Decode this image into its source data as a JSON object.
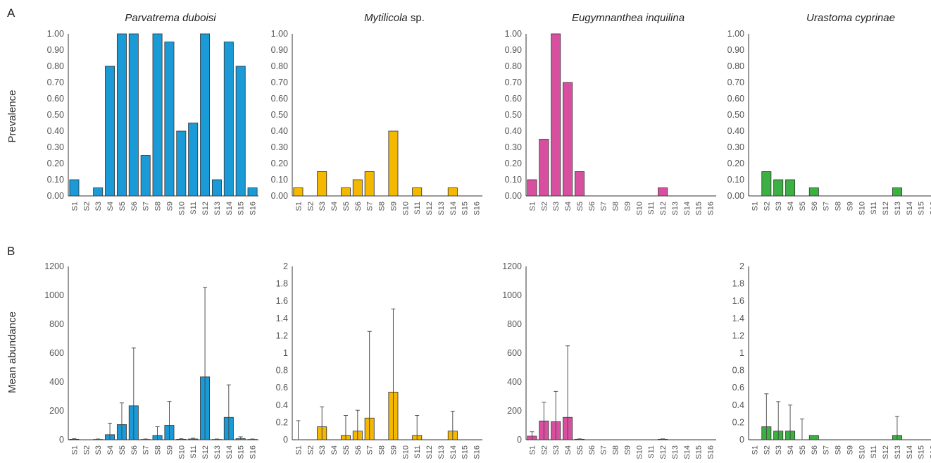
{
  "panel_labels": [
    "A",
    "B"
  ],
  "ylabels": {
    "prevalence": "Prevalence",
    "abundance": "Mean abundance"
  },
  "categories": [
    "S1",
    "S2",
    "S3",
    "S4",
    "S5",
    "S6",
    "S7",
    "S8",
    "S9",
    "S10",
    "S11",
    "S12",
    "S13",
    "S14",
    "S15",
    "S16"
  ],
  "chart_data": [
    {
      "type": "bar",
      "panel": "A",
      "title": "Parvatrema duboisi",
      "ylabel": "Prevalence",
      "color": "#1a9bd7",
      "ylim": [
        0,
        1
      ],
      "ystep": 0.1,
      "ydecimals": 2,
      "values": [
        0.1,
        0,
        0.05,
        0.8,
        1.0,
        1.0,
        0.25,
        1.0,
        0.95,
        0.4,
        0.45,
        1.0,
        0.1,
        0.95,
        0.8,
        0.05
      ]
    },
    {
      "type": "bar",
      "panel": "A",
      "title_italic": "Mytilicola",
      "title_plain": " sp.",
      "color": "#f5b800",
      "ylim": [
        0,
        1
      ],
      "ystep": 0.1,
      "ydecimals": 2,
      "values": [
        0.05,
        0,
        0.15,
        0,
        0.05,
        0.1,
        0.15,
        0,
        0.4,
        0,
        0.05,
        0,
        0,
        0.05,
        0,
        0
      ]
    },
    {
      "type": "bar",
      "panel": "A",
      "title": "Eugymnanthea inquilina",
      "color": "#d94fa0",
      "ylim": [
        0,
        1
      ],
      "ystep": 0.1,
      "ydecimals": 2,
      "values": [
        0.1,
        0.35,
        1.0,
        0.7,
        0.15,
        0,
        0,
        0,
        0,
        0,
        0,
        0.05,
        0,
        0,
        0,
        0
      ]
    },
    {
      "type": "bar",
      "panel": "A",
      "title": "Urastoma cyprinae",
      "color": "#3cb043",
      "ylim": [
        0,
        1
      ],
      "ystep": 0.1,
      "ydecimals": 2,
      "values": [
        0,
        0.15,
        0.1,
        0.1,
        0,
        0.05,
        0,
        0,
        0,
        0,
        0,
        0,
        0.05,
        0,
        0,
        0
      ]
    },
    {
      "type": "bar",
      "panel": "B",
      "ylabel": "Mean abundance",
      "color": "#1a9bd7",
      "ylim": [
        0,
        1200
      ],
      "ystep": 200,
      "ydecimals": 0,
      "values": [
        3,
        0,
        2,
        35,
        105,
        235,
        2,
        30,
        100,
        3,
        5,
        435,
        2,
        155,
        8,
        2
      ],
      "error": [
        4,
        0,
        3,
        80,
        150,
        400,
        3,
        60,
        165,
        4,
        6,
        620,
        3,
        225,
        12,
        3
      ]
    },
    {
      "type": "bar",
      "panel": "B",
      "color": "#f5b800",
      "ylim": [
        0,
        2
      ],
      "ystep": 0.2,
      "ydecimals": 1,
      "values": [
        0,
        0,
        0.15,
        0,
        0.05,
        0.1,
        0.25,
        0,
        0.55,
        0,
        0.05,
        0,
        0,
        0.1,
        0,
        0
      ],
      "error": [
        0.22,
        0,
        0.23,
        0,
        0.23,
        0.24,
        1.0,
        0,
        0.96,
        0,
        0.23,
        0,
        0,
        0.23,
        0,
        0
      ]
    },
    {
      "type": "bar",
      "panel": "B",
      "color": "#d94fa0",
      "ylim": [
        0,
        1200
      ],
      "ystep": 200,
      "ydecimals": 0,
      "values": [
        25,
        130,
        125,
        155,
        3,
        0,
        0,
        0,
        0,
        0,
        0,
        3,
        0,
        0,
        0,
        0
      ],
      "error": [
        30,
        130,
        210,
        495,
        3,
        0,
        0,
        0,
        0,
        0,
        0,
        3,
        0,
        0,
        0,
        0
      ]
    },
    {
      "type": "bar",
      "panel": "B",
      "color": "#3cb043",
      "ylim": [
        0,
        2
      ],
      "ystep": 0.2,
      "ydecimals": 1,
      "values": [
        0,
        0.15,
        0.1,
        0.1,
        0,
        0.05,
        0,
        0,
        0,
        0,
        0,
        0,
        0.05,
        0,
        0,
        0
      ],
      "error": [
        0,
        0.38,
        0.34,
        0.3,
        0.24,
        0,
        0,
        0,
        0,
        0,
        0,
        0,
        0.22,
        0,
        0,
        0
      ]
    }
  ]
}
